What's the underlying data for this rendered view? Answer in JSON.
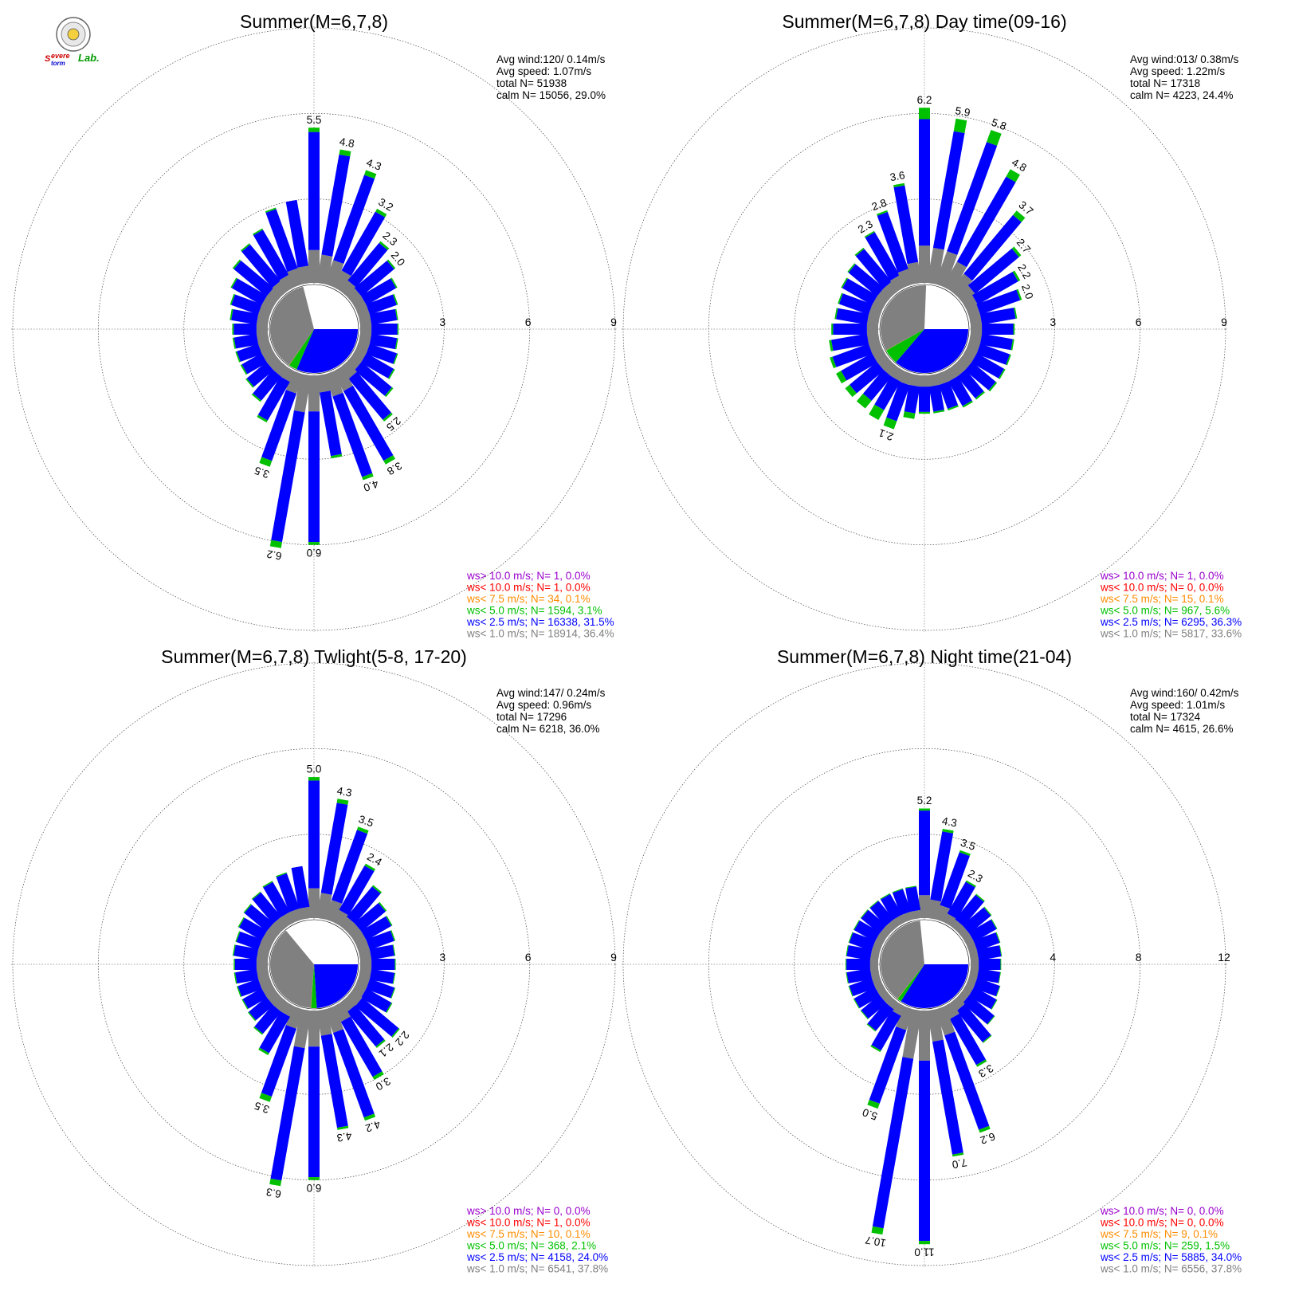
{
  "colors": {
    "calm": "#ffffff",
    "lt1": "#808080",
    "lt2_5": "#0000ff",
    "lt5": "#00c000",
    "lt7_5": "#ff8c00",
    "lt10": "#ff0000",
    "gt10": "#9900cc",
    "grid": "#808080"
  },
  "logo": {
    "s1": "S",
    "word1": "evere",
    "word2": "torm",
    "lab": "Lab."
  },
  "stat_labels": {
    "avg_wind": "Avg wind:",
    "avg_speed": "Avg speed:",
    "total": "total N=",
    "calm": "calm N="
  },
  "legend_labels": [
    "ws> 10.0 m/s; N=",
    "ws< 10.0 m/s; N=",
    "ws<  7.5 m/s; N=",
    "ws<  5.0 m/s; N=",
    "ws<  2.5 m/s; N=",
    "ws<  1.0 m/s; N="
  ],
  "chart_data": [
    {
      "type": "wind-rose",
      "title": "Summer(M=6,7,8)",
      "stats": {
        "avg_wind": "120/ 0.14m/s",
        "avg_speed": "1.07m/s",
        "total_n": "51938",
        "calm_n": "15056,  29.0%"
      },
      "rings": [
        "3",
        "6",
        "9"
      ],
      "rmax": 9,
      "calm_pct": 29.0,
      "pie_pct": {
        "lt1": 36.4,
        "lt2_5": 31.5,
        "lt5": 3.1,
        "lt7_5": 0.1,
        "lt10": 0.0,
        "gt10": 0.0
      },
      "legend": [
        "1,  0.0%",
        "1,  0.0%",
        "34,  0.1%",
        "1594,  3.1%",
        "16338, 31.5%",
        "18914, 36.4%"
      ],
      "peak_labels": [
        {
          "bin": 0,
          "text": "5.5"
        },
        {
          "bin": 1,
          "text": "4.8"
        },
        {
          "bin": 2,
          "text": "4.3"
        },
        {
          "bin": 3,
          "text": "3.2"
        },
        {
          "bin": 4,
          "text": "2.3"
        },
        {
          "bin": 5,
          "text": "2.0"
        },
        {
          "bin": 14,
          "text": "2.5"
        },
        {
          "bin": 15,
          "text": "3.8"
        },
        {
          "bin": 16,
          "text": "4.0"
        },
        {
          "bin": 18,
          "text": "6.0"
        },
        {
          "bin": 19,
          "text": "6.2"
        },
        {
          "bin": 20,
          "text": "3.5"
        }
      ],
      "bins": [
        {
          "total": 5.5,
          "green": 0.15
        },
        {
          "total": 4.8,
          "green": 0.18
        },
        {
          "total": 4.3,
          "green": 0.18
        },
        {
          "total": 3.2,
          "green": 0.12
        },
        {
          "total": 2.3,
          "green": 0.08
        },
        {
          "total": 2.0,
          "green": 0.06
        },
        {
          "total": 1.7,
          "green": 0.05
        },
        {
          "total": 1.5,
          "green": 0.05
        },
        {
          "total": 1.4,
          "green": 0.04
        },
        {
          "total": 1.4,
          "green": 0.04
        },
        {
          "total": 1.4,
          "green": 0.04
        },
        {
          "total": 1.5,
          "green": 0.04
        },
        {
          "total": 1.6,
          "green": 0.05
        },
        {
          "total": 1.9,
          "green": 0.06
        },
        {
          "total": 2.5,
          "green": 0.08
        },
        {
          "total": 3.8,
          "green": 0.15
        },
        {
          "total": 4.0,
          "green": 0.12
        },
        {
          "total": 3.0,
          "green": 0.08
        },
        {
          "total": 6.0,
          "green": 0.1
        },
        {
          "total": 6.2,
          "green": 0.22
        },
        {
          "total": 3.5,
          "green": 0.22
        },
        {
          "total": 2.1,
          "green": 0.08
        },
        {
          "total": 1.6,
          "green": 0.06
        },
        {
          "total": 1.4,
          "green": 0.05
        },
        {
          "total": 1.3,
          "green": 0.05
        },
        {
          "total": 1.3,
          "green": 0.05
        },
        {
          "total": 1.3,
          "green": 0.05
        },
        {
          "total": 1.3,
          "green": 0.05
        },
        {
          "total": 1.4,
          "green": 0.05
        },
        {
          "total": 1.5,
          "green": 0.05
        },
        {
          "total": 1.7,
          "green": 0.05
        },
        {
          "total": 2.0,
          "green": 0.06
        },
        {
          "total": 2.2,
          "green": 0.05
        },
        {
          "total": 2.4,
          "green": 0.05
        },
        {
          "total": 2.9,
          "green": 0.05
        },
        {
          "total": 3.0,
          "green": 0.0
        }
      ]
    },
    {
      "type": "wind-rose",
      "title": "Summer(M=6,7,8) Day time(09-16)",
      "stats": {
        "avg_wind": "013/ 0.38m/s",
        "avg_speed": "1.22m/s",
        "total_n": "17318",
        "calm_n": "4223,  24.4%"
      },
      "rings": [
        "3",
        "6",
        "9"
      ],
      "rmax": 9,
      "calm_pct": 24.4,
      "pie_pct": {
        "lt1": 33.6,
        "lt2_5": 36.3,
        "lt5": 5.6,
        "lt7_5": 0.1,
        "lt10": 0.0,
        "gt10": 0.0
      },
      "legend": [
        "1,  0.0%",
        "0,  0.0%",
        "15,  0.1%",
        "967,  5.6%",
        "6295, 36.3%",
        "5817, 33.6%"
      ],
      "peak_labels": [
        {
          "bin": 0,
          "text": "6.2"
        },
        {
          "bin": 1,
          "text": "5.9"
        },
        {
          "bin": 2,
          "text": "5.8"
        },
        {
          "bin": 3,
          "text": "4.8"
        },
        {
          "bin": 4,
          "text": "3.7"
        },
        {
          "bin": 5,
          "text": "2.7"
        },
        {
          "bin": 6,
          "text": "2.2"
        },
        {
          "bin": 7,
          "text": "2.0"
        },
        {
          "bin": 20,
          "text": "2.1"
        },
        {
          "bin": 33,
          "text": "2.3"
        },
        {
          "bin": 34,
          "text": "2.8"
        },
        {
          "bin": 35,
          "text": "3.6"
        }
      ],
      "bins": [
        {
          "total": 6.2,
          "green": 0.4
        },
        {
          "total": 5.9,
          "green": 0.45
        },
        {
          "total": 5.8,
          "green": 0.45
        },
        {
          "total": 4.8,
          "green": 0.3
        },
        {
          "total": 3.7,
          "green": 0.2
        },
        {
          "total": 2.7,
          "green": 0.1
        },
        {
          "total": 2.2,
          "green": 0.08
        },
        {
          "total": 2.0,
          "green": 0.06
        },
        {
          "total": 1.7,
          "green": 0.05
        },
        {
          "total": 1.6,
          "green": 0.05
        },
        {
          "total": 1.6,
          "green": 0.05
        },
        {
          "total": 1.6,
          "green": 0.05
        },
        {
          "total": 1.6,
          "green": 0.05
        },
        {
          "total": 1.6,
          "green": 0.06
        },
        {
          "total": 1.5,
          "green": 0.06
        },
        {
          "total": 1.5,
          "green": 0.06
        },
        {
          "total": 1.4,
          "green": 0.06
        },
        {
          "total": 1.4,
          "green": 0.06
        },
        {
          "total": 1.4,
          "green": 0.06
        },
        {
          "total": 1.6,
          "green": 0.2
        },
        {
          "total": 2.1,
          "green": 0.3
        },
        {
          "total": 2.0,
          "green": 0.4
        },
        {
          "total": 1.9,
          "green": 0.35
        },
        {
          "total": 1.9,
          "green": 0.2
        },
        {
          "total": 1.9,
          "green": 0.2
        },
        {
          "total": 1.9,
          "green": 0.1
        },
        {
          "total": 1.8,
          "green": 0.08
        },
        {
          "total": 1.7,
          "green": 0.06
        },
        {
          "total": 1.6,
          "green": 0.05
        },
        {
          "total": 1.6,
          "green": 0.05
        },
        {
          "total": 1.7,
          "green": 0.05
        },
        {
          "total": 1.8,
          "green": 0.05
        },
        {
          "total": 2.0,
          "green": 0.05
        },
        {
          "total": 2.3,
          "green": 0.05
        },
        {
          "total": 2.8,
          "green": 0.06
        },
        {
          "total": 3.6,
          "green": 0.08
        }
      ]
    },
    {
      "type": "wind-rose",
      "title": "Summer(M=6,7,8) Twlight(5-8, 17-20)",
      "stats": {
        "avg_wind": "147/ 0.24m/s",
        "avg_speed": "0.96m/s",
        "total_n": "17296",
        "calm_n": "6218,  36.0%"
      },
      "rings": [
        "3",
        "6",
        "9"
      ],
      "rmax": 9,
      "calm_pct": 36.0,
      "pie_pct": {
        "lt1": 37.8,
        "lt2_5": 24.0,
        "lt5": 2.1,
        "lt7_5": 0.1,
        "lt10": 0.0,
        "gt10": 0.0
      },
      "legend": [
        "0,  0.0%",
        "1,  0.0%",
        "10,  0.1%",
        "368,  2.1%",
        "4158, 24.0%",
        "6541, 37.8%"
      ],
      "peak_labels": [
        {
          "bin": 0,
          "text": "5.0"
        },
        {
          "bin": 1,
          "text": "4.3"
        },
        {
          "bin": 2,
          "text": "3.5"
        },
        {
          "bin": 3,
          "text": "2.4"
        },
        {
          "bin": 13,
          "text": "2.2"
        },
        {
          "bin": 14,
          "text": "2.1"
        },
        {
          "bin": 15,
          "text": "3.0"
        },
        {
          "bin": 16,
          "text": "4.2"
        },
        {
          "bin": 17,
          "text": "4.3"
        },
        {
          "bin": 18,
          "text": "6.0"
        },
        {
          "bin": 19,
          "text": "6.3"
        },
        {
          "bin": 20,
          "text": "3.5"
        }
      ],
      "bins": [
        {
          "total": 5.0,
          "green": 0.12
        },
        {
          "total": 4.3,
          "green": 0.15
        },
        {
          "total": 3.5,
          "green": 0.12
        },
        {
          "total": 2.4,
          "green": 0.08
        },
        {
          "total": 1.9,
          "green": 0.06
        },
        {
          "total": 1.6,
          "green": 0.05
        },
        {
          "total": 1.5,
          "green": 0.04
        },
        {
          "total": 1.4,
          "green": 0.04
        },
        {
          "total": 1.3,
          "green": 0.03
        },
        {
          "total": 1.3,
          "green": 0.03
        },
        {
          "total": 1.3,
          "green": 0.03
        },
        {
          "total": 1.4,
          "green": 0.03
        },
        {
          "total": 1.5,
          "green": 0.04
        },
        {
          "total": 2.2,
          "green": 0.05
        },
        {
          "total": 2.1,
          "green": 0.06
        },
        {
          "total": 3.0,
          "green": 0.12
        },
        {
          "total": 4.2,
          "green": 0.12
        },
        {
          "total": 4.3,
          "green": 0.08
        },
        {
          "total": 6.0,
          "green": 0.1
        },
        {
          "total": 6.3,
          "green": 0.2
        },
        {
          "total": 3.5,
          "green": 0.2
        },
        {
          "total": 2.0,
          "green": 0.08
        },
        {
          "total": 1.5,
          "green": 0.05
        },
        {
          "total": 1.3,
          "green": 0.04
        },
        {
          "total": 1.25,
          "green": 0.04
        },
        {
          "total": 1.25,
          "green": 0.04
        },
        {
          "total": 1.25,
          "green": 0.04
        },
        {
          "total": 1.25,
          "green": 0.04
        },
        {
          "total": 1.3,
          "green": 0.04
        },
        {
          "total": 1.3,
          "green": 0.04
        },
        {
          "total": 1.4,
          "green": 0.04
        },
        {
          "total": 1.5,
          "green": 0.04
        },
        {
          "total": 1.6,
          "green": 0.04
        },
        {
          "total": 1.7,
          "green": 0.04
        },
        {
          "total": 1.8,
          "green": 0.04
        },
        {
          "total": 1.9,
          "green": 0.0
        }
      ]
    },
    {
      "type": "wind-rose",
      "title": "Summer(M=6,7,8) Night time(21-04)",
      "stats": {
        "avg_wind": "160/ 0.42m/s",
        "avg_speed": "1.01m/s",
        "total_n": "17324",
        "calm_n": "4615,  26.6%"
      },
      "rings": [
        "4",
        "8",
        "12"
      ],
      "rmax": 12,
      "calm_pct": 26.6,
      "pie_pct": {
        "lt1": 37.8,
        "lt2_5": 34.0,
        "lt5": 1.5,
        "lt7_5": 0.1,
        "lt10": 0.0,
        "gt10": 0.0
      },
      "legend": [
        "0,  0.0%",
        "0,  0.0%",
        "9,  0.1%",
        "259,  1.5%",
        "5885, 34.0%",
        "6556, 37.8%"
      ],
      "peak_labels": [
        {
          "bin": 0,
          "text": "5.2"
        },
        {
          "bin": 1,
          "text": "4.3"
        },
        {
          "bin": 2,
          "text": "3.5"
        },
        {
          "bin": 3,
          "text": "2.3"
        },
        {
          "bin": 15,
          "text": "3.3"
        },
        {
          "bin": 16,
          "text": "6.2"
        },
        {
          "bin": 17,
          "text": "7.0"
        },
        {
          "bin": 18,
          "text": "11.0"
        },
        {
          "bin": 19,
          "text": "10.7"
        },
        {
          "bin": 20,
          "text": "5.0"
        }
      ],
      "bins": [
        {
          "total": 5.2,
          "green": 0.1
        },
        {
          "total": 4.3,
          "green": 0.12
        },
        {
          "total": 3.5,
          "green": 0.1
        },
        {
          "total": 2.3,
          "green": 0.08
        },
        {
          "total": 2.0,
          "green": 0.06
        },
        {
          "total": 1.8,
          "green": 0.05
        },
        {
          "total": 1.7,
          "green": 0.04
        },
        {
          "total": 1.6,
          "green": 0.04
        },
        {
          "total": 1.55,
          "green": 0.03
        },
        {
          "total": 1.5,
          "green": 0.03
        },
        {
          "total": 1.5,
          "green": 0.03
        },
        {
          "total": 1.6,
          "green": 0.03
        },
        {
          "total": 1.7,
          "green": 0.04
        },
        {
          "total": 2.0,
          "green": 0.04
        },
        {
          "total": 2.5,
          "green": 0.05
        },
        {
          "total": 3.3,
          "green": 0.1
        },
        {
          "total": 6.2,
          "green": 0.15
        },
        {
          "total": 7.0,
          "green": 0.1
        },
        {
          "total": 11.0,
          "green": 0.15
        },
        {
          "total": 10.7,
          "green": 0.3
        },
        {
          "total": 5.0,
          "green": 0.25
        },
        {
          "total": 2.5,
          "green": 0.08
        },
        {
          "total": 1.8,
          "green": 0.05
        },
        {
          "total": 1.6,
          "green": 0.04
        },
        {
          "total": 1.6,
          "green": 0.04
        },
        {
          "total": 1.6,
          "green": 0.04
        },
        {
          "total": 1.6,
          "green": 0.04
        },
        {
          "total": 1.6,
          "green": 0.04
        },
        {
          "total": 1.6,
          "green": 0.04
        },
        {
          "total": 1.6,
          "green": 0.04
        },
        {
          "total": 1.6,
          "green": 0.04
        },
        {
          "total": 1.6,
          "green": 0.04
        },
        {
          "total": 1.6,
          "green": 0.04
        },
        {
          "total": 1.6,
          "green": 0.04
        },
        {
          "total": 1.6,
          "green": 0.04
        },
        {
          "total": 1.6,
          "green": 0.04
        }
      ]
    }
  ]
}
